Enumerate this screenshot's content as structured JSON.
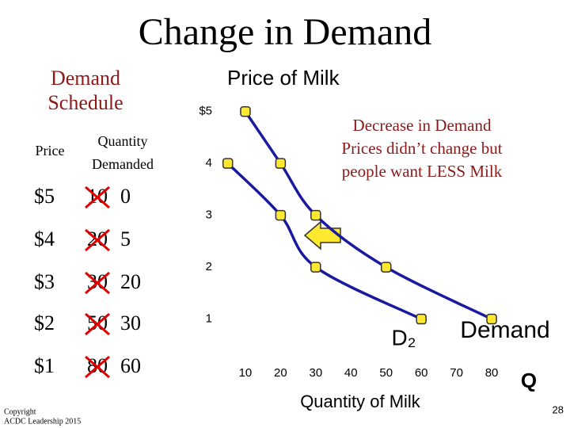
{
  "slide": {
    "title": "Change in Demand",
    "schedule_title": [
      "Demand",
      "Schedule"
    ],
    "number": "28",
    "copyright": [
      "Copyright",
      "ACDC Leadership 2015"
    ]
  },
  "table": {
    "headers": [
      "Price",
      "Quantity",
      "Demanded"
    ],
    "rows": [
      [
        "$5",
        "10",
        "0"
      ],
      [
        "$4",
        "20",
        "5"
      ],
      [
        "$3",
        "30",
        "20"
      ],
      [
        "$2",
        "50",
        "30"
      ],
      [
        "$1",
        "80",
        "60"
      ]
    ]
  },
  "annotation": [
    "Decrease in Demand",
    "Prices didn’t change but",
    "people want LESS Milk"
  ],
  "chart_data": {
    "type": "line",
    "ylabel": "Price of Milk",
    "xlabel": "Quantity of Milk",
    "x_end_label": "Q",
    "xlim": [
      0,
      90
    ],
    "ylim": [
      0,
      5.5
    ],
    "xticks": [
      10,
      20,
      30,
      40,
      50,
      60,
      70,
      80
    ],
    "yticks": [
      {
        "value": 5,
        "label": "$5"
      },
      4,
      3,
      2,
      1
    ],
    "series": [
      {
        "name": "Demand",
        "color": "#1a1aa0",
        "x": [
          10,
          20,
          30,
          50,
          80
        ],
        "values": [
          5,
          4,
          3,
          2,
          1
        ]
      },
      {
        "name": "D₂",
        "color": "#1a1aa0",
        "x": [
          5,
          20,
          30,
          60
        ],
        "values": [
          4,
          3,
          2,
          1
        ]
      }
    ]
  }
}
